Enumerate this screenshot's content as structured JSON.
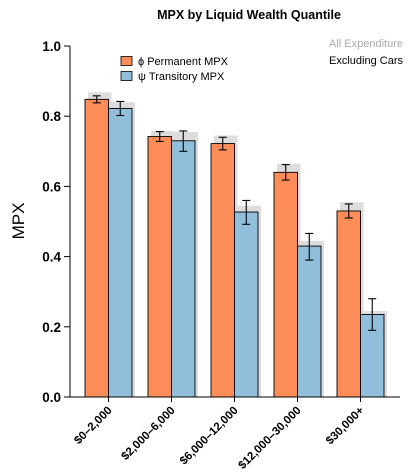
{
  "chart_data": {
    "type": "bar",
    "title": "MPX by Liquid Wealth Quantile",
    "xlabel": "",
    "ylabel": "MPX",
    "ylim": [
      0,
      1.0
    ],
    "yticks": [
      "0.0",
      "0.2",
      "0.4",
      "0.6",
      "0.8",
      "1.0"
    ],
    "categories": [
      "$0–2,000",
      "$2,000–6,000",
      "$6,000–12,000",
      "$12,000–30,000",
      "$30,000+"
    ],
    "series": [
      {
        "name": "ϕ Permanent MPX",
        "color": "#fc8d59",
        "values": [
          0.848,
          0.742,
          0.722,
          0.64,
          0.53
        ],
        "err_low": [
          0.838,
          0.728,
          0.704,
          0.618,
          0.51
        ],
        "err_high": [
          0.858,
          0.756,
          0.74,
          0.662,
          0.55
        ],
        "shadow_values": [
          0.868,
          0.758,
          0.745,
          0.665,
          0.555
        ]
      },
      {
        "name": "ψ Transitory MPX",
        "color": "#91bfdb",
        "values": [
          0.822,
          0.73,
          0.527,
          0.43,
          0.235
        ],
        "err_low": [
          0.802,
          0.7,
          0.492,
          0.39,
          0.19
        ],
        "err_high": [
          0.842,
          0.758,
          0.56,
          0.466,
          0.28
        ],
        "shadow_values": [
          0.84,
          0.755,
          0.545,
          0.445,
          0.245
        ]
      }
    ],
    "annotations": {
      "all_expenditure": {
        "label": "All Expenditure",
        "color": "#aaaaaa"
      },
      "excluding_cars": {
        "label": "Excluding Cars",
        "color": "#000000"
      }
    },
    "shadow_color": "#dddddd",
    "legend_position": "top-left",
    "grid": false
  }
}
